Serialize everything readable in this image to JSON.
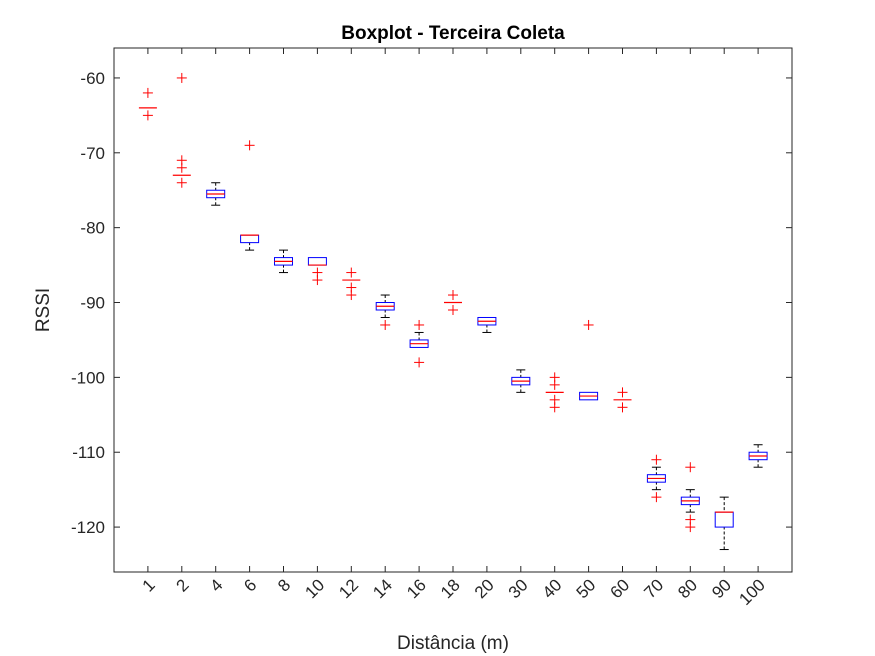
{
  "chart_data": {
    "type": "boxplot",
    "title": "Boxplot - Terceira Coleta",
    "xlabel": "Distância (m)",
    "ylabel": "RSSI",
    "ylim": [
      -126,
      -56
    ],
    "yticks": [
      -60,
      -70,
      -80,
      -90,
      -100,
      -110,
      -120
    ],
    "categories": [
      "1",
      "2",
      "4",
      "6",
      "8",
      "10",
      "12",
      "14",
      "16",
      "18",
      "20",
      "30",
      "40",
      "50",
      "60",
      "70",
      "80",
      "90",
      "100"
    ],
    "box_color": "#0000ff",
    "median_color": "#ff0000",
    "whisker_color": "#000000",
    "outlier_color": "#ff0000",
    "boxes": [
      {
        "category": "1",
        "median": -64,
        "q1": -64,
        "q3": -64,
        "whisker_low": -64,
        "whisker_high": -64,
        "outliers": [
          -62,
          -65
        ]
      },
      {
        "category": "2",
        "median": -73,
        "q1": -73,
        "q3": -73,
        "whisker_low": -73,
        "whisker_high": -73,
        "outliers": [
          -60,
          -71,
          -72,
          -74
        ]
      },
      {
        "category": "4",
        "median": -75.5,
        "q1": -76,
        "q3": -75,
        "whisker_low": -77,
        "whisker_high": -74,
        "outliers": []
      },
      {
        "category": "6",
        "median": -81,
        "q1": -82,
        "q3": -81,
        "whisker_low": -83,
        "whisker_high": -81,
        "outliers": [
          -69
        ]
      },
      {
        "category": "8",
        "median": -84.5,
        "q1": -85,
        "q3": -84,
        "whisker_low": -86,
        "whisker_high": -83,
        "outliers": []
      },
      {
        "category": "10",
        "median": -85,
        "q1": -85,
        "q3": -84,
        "whisker_low": -85,
        "whisker_high": -84,
        "outliers": [
          -86,
          -87
        ]
      },
      {
        "category": "12",
        "median": -87,
        "q1": -87,
        "q3": -87,
        "whisker_low": -87,
        "whisker_high": -87,
        "outliers": [
          -86,
          -88,
          -89
        ]
      },
      {
        "category": "14",
        "median": -90.5,
        "q1": -91,
        "q3": -90,
        "whisker_low": -92,
        "whisker_high": -89,
        "outliers": [
          -93
        ]
      },
      {
        "category": "16",
        "median": -95.5,
        "q1": -96,
        "q3": -95,
        "whisker_low": -96,
        "whisker_high": -94,
        "outliers": [
          -93,
          -98
        ]
      },
      {
        "category": "18",
        "median": -90,
        "q1": -90,
        "q3": -90,
        "whisker_low": -90,
        "whisker_high": -90,
        "outliers": [
          -89,
          -91
        ]
      },
      {
        "category": "20",
        "median": -92.5,
        "q1": -93,
        "q3": -92,
        "whisker_low": -94,
        "whisker_high": -92,
        "outliers": []
      },
      {
        "category": "30",
        "median": -100.5,
        "q1": -101,
        "q3": -100,
        "whisker_low": -102,
        "whisker_high": -99,
        "outliers": []
      },
      {
        "category": "40",
        "median": -102,
        "q1": -102,
        "q3": -102,
        "whisker_low": -102,
        "whisker_high": -102,
        "outliers": [
          -100,
          -101,
          -103,
          -104
        ]
      },
      {
        "category": "50",
        "median": -102.5,
        "q1": -103,
        "q3": -102,
        "whisker_low": -103,
        "whisker_high": -102,
        "outliers": [
          -93
        ]
      },
      {
        "category": "60",
        "median": -103,
        "q1": -103,
        "q3": -103,
        "whisker_low": -103,
        "whisker_high": -103,
        "outliers": [
          -102,
          -104
        ]
      },
      {
        "category": "70",
        "median": -113.5,
        "q1": -114,
        "q3": -113,
        "whisker_low": -115,
        "whisker_high": -112,
        "outliers": [
          -111,
          -116
        ]
      },
      {
        "category": "80",
        "median": -116.5,
        "q1": -117,
        "q3": -116,
        "whisker_low": -118,
        "whisker_high": -115,
        "outliers": [
          -112,
          -119,
          -120
        ]
      },
      {
        "category": "90",
        "median": -118,
        "q1": -120,
        "q3": -118,
        "whisker_low": -123,
        "whisker_high": -116,
        "outliers": []
      },
      {
        "category": "100",
        "median": -110.5,
        "q1": -111,
        "q3": -110,
        "whisker_low": -112,
        "whisker_high": -109,
        "outliers": []
      }
    ]
  }
}
